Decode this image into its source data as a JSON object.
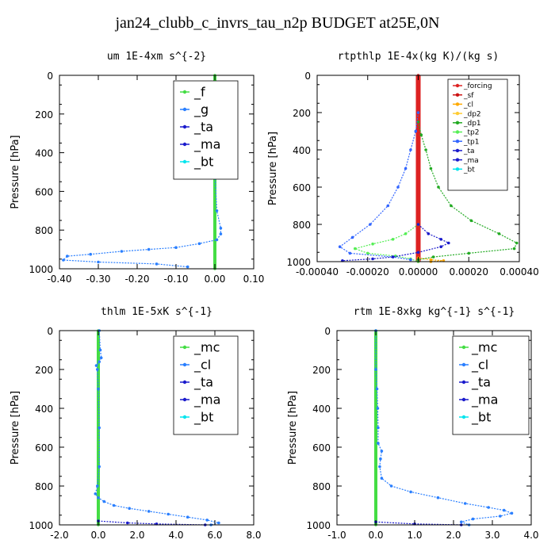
{
  "figure_title": "jan24_clubb_c_invrs_tau_n2p  BUDGET at25E,0N",
  "chart_data": [
    {
      "type": "line",
      "title": "um   1E-4xm s^{-2}",
      "ylabel": "Pressure [hPa]",
      "xlim": [
        -0.4,
        0.1
      ],
      "ylim": [
        1000,
        0
      ],
      "xticks": [
        "-0.40",
        "-0.30",
        "-0.20",
        "-0.10",
        "0.00",
        "0.10"
      ],
      "yticks": [
        "0",
        "200",
        "400",
        "600",
        "800",
        "1000"
      ],
      "legend_font": 16,
      "legend_placement": "top-right",
      "series": [
        {
          "name": "_f",
          "color": "#44dd44",
          "points": [
            [
              0.0,
              0
            ],
            [
              0.0,
              100
            ],
            [
              0.0,
              200
            ],
            [
              0.0,
              300
            ],
            [
              0.0,
              400
            ],
            [
              0.0,
              500
            ],
            [
              0.0,
              600
            ],
            [
              0.0,
              700
            ],
            [
              0.0,
              800
            ],
            [
              0.0,
              900
            ],
            [
              0.0,
              950
            ],
            [
              0.0,
              1000
            ]
          ]
        },
        {
          "name": "_g",
          "color": "#2a7fff",
          "points": [
            [
              0.0,
              100
            ],
            [
              0.02,
              140
            ],
            [
              0.01,
              170
            ],
            [
              0.003,
              250
            ],
            [
              0.0,
              500
            ],
            [
              0.005,
              700
            ],
            [
              0.015,
              790
            ],
            [
              0.015,
              820
            ],
            [
              0.005,
              850
            ],
            [
              -0.04,
              870
            ],
            [
              -0.1,
              890
            ],
            [
              -0.17,
              900
            ],
            [
              -0.24,
              910
            ],
            [
              -0.32,
              925
            ],
            [
              -0.38,
              935
            ],
            [
              -0.39,
              955
            ],
            [
              -0.3,
              965
            ],
            [
              -0.15,
              975
            ],
            [
              -0.07,
              990
            ]
          ]
        },
        {
          "name": "_ta",
          "color": "#1b1bcc",
          "points": []
        },
        {
          "name": "_ma",
          "color": "#1b1bcc",
          "points": []
        },
        {
          "name": "_bt",
          "color": "#00e5ee",
          "points": []
        }
      ]
    },
    {
      "type": "line",
      "title": "rtpthlp   1E-4x(kg K)/(kg s)",
      "ylabel": "Pressure [hPa]",
      "xlim": [
        -0.0004,
        0.0004
      ],
      "ylim": [
        1000,
        0
      ],
      "xticks": [
        "-0.00040",
        "-0.00020",
        "0.00000",
        "0.00020",
        "0.00040"
      ],
      "yticks": [
        "0",
        "200",
        "400",
        "600",
        "800",
        "1000"
      ],
      "legend_font": 9,
      "legend_placement": "top-right",
      "series": [
        {
          "name": "_forcing",
          "color": "#dd2222",
          "points": [
            [
              0.0,
              0
            ],
            [
              0.0,
              200
            ],
            [
              0.0,
              400
            ],
            [
              0.0,
              600
            ],
            [
              0.0,
              800
            ],
            [
              0.0,
              1000
            ]
          ]
        },
        {
          "name": "_sf",
          "color": "#cc1111",
          "points": []
        },
        {
          "name": "_cl",
          "color": "#ffaa00",
          "points": [
            [
              0.0,
              980
            ],
            [
              5e-05,
              990
            ],
            [
              0.0001,
              995
            ],
            [
              5e-05,
              1000
            ]
          ]
        },
        {
          "name": "_dp2",
          "color": "#ffcc33",
          "points": []
        },
        {
          "name": "_dp1",
          "color": "#22aa22",
          "points": [
            [
              0.0,
              250
            ],
            [
              1.2e-05,
              320
            ],
            [
              3e-05,
              400
            ],
            [
              5e-05,
              500
            ],
            [
              8e-05,
              600
            ],
            [
              0.00013,
              700
            ],
            [
              0.00021,
              780
            ],
            [
              0.00032,
              850
            ],
            [
              0.00039,
              900
            ],
            [
              0.00038,
              930
            ],
            [
              0.0002,
              955
            ],
            [
              6e-05,
              975
            ],
            [
              0.0,
              990
            ]
          ]
        },
        {
          "name": "_tp2",
          "color": "#55ee55",
          "points": [
            [
              0.0,
              800
            ],
            [
              -5e-05,
              850
            ],
            [
              -0.0001,
              880
            ],
            [
              -0.00018,
              905
            ],
            [
              -0.00025,
              930
            ],
            [
              -0.0002,
              955
            ],
            [
              -9e-05,
              970
            ],
            [
              -3e-05,
              985
            ],
            [
              0.0,
              1000
            ]
          ]
        },
        {
          "name": "_tp1",
          "color": "#3366ff",
          "points": [
            [
              0.0,
              200
            ],
            [
              -1e-05,
              300
            ],
            [
              -3e-05,
              400
            ],
            [
              -5e-05,
              500
            ],
            [
              -8e-05,
              600
            ],
            [
              -0.00012,
              700
            ],
            [
              -0.00019,
              800
            ],
            [
              -0.00026,
              870
            ],
            [
              -0.00031,
              920
            ],
            [
              -0.00027,
              955
            ],
            [
              -0.0001,
              975
            ],
            [
              -3e-05,
              990
            ]
          ]
        },
        {
          "name": "_ta",
          "color": "#1b1bcc",
          "points": [
            [
              0.0,
              800
            ],
            [
              4e-05,
              850
            ],
            [
              9e-05,
              880
            ],
            [
              0.00012,
              900
            ],
            [
              9e-05,
              920
            ],
            [
              0.0,
              950
            ],
            [
              -0.0001,
              975
            ],
            [
              -0.00018,
              985
            ],
            [
              -0.0003,
              995
            ]
          ]
        },
        {
          "name": "_ma",
          "color": "#1b1bcc",
          "points": []
        },
        {
          "name": "_bt",
          "color": "#00e5ee",
          "points": []
        }
      ]
    },
    {
      "type": "line",
      "title": "thlm   1E-5xK s^{-1}",
      "ylabel": "Pressure [hPa]",
      "xlim": [
        -2.0,
        8.0
      ],
      "ylim": [
        1000,
        0
      ],
      "xticks": [
        "-2.0",
        "0.0",
        "2.0",
        "4.0",
        "6.0",
        "8.0"
      ],
      "yticks": [
        "0",
        "200",
        "400",
        "600",
        "800",
        "1000"
      ],
      "legend_font": 16,
      "legend_placement": "top-right",
      "series": [
        {
          "name": "_mc",
          "color": "#44dd44",
          "points": [
            [
              0.0,
              0
            ],
            [
              0.0,
              200
            ],
            [
              0.0,
              400
            ],
            [
              0.0,
              600
            ],
            [
              0.0,
              800
            ],
            [
              0.0,
              1000
            ]
          ]
        },
        {
          "name": "_cl",
          "color": "#2a7fff",
          "points": [
            [
              0.05,
              0
            ],
            [
              0.1,
              100
            ],
            [
              0.15,
              140
            ],
            [
              0.05,
              160
            ],
            [
              -0.1,
              180
            ],
            [
              -0.05,
              200
            ],
            [
              0.0,
              300
            ],
            [
              0.05,
              500
            ],
            [
              0.05,
              700
            ],
            [
              -0.05,
              800
            ],
            [
              -0.15,
              840
            ],
            [
              0.0,
              860
            ],
            [
              0.3,
              880
            ],
            [
              0.8,
              900
            ],
            [
              1.6,
              915
            ],
            [
              2.6,
              930
            ],
            [
              3.6,
              945
            ],
            [
              4.6,
              960
            ],
            [
              5.6,
              975
            ],
            [
              6.2,
              990
            ],
            [
              5.8,
              1000
            ]
          ]
        },
        {
          "name": "_ta",
          "color": "#1b1bcc",
          "points": [
            [
              0.0,
              980
            ],
            [
              1.5,
              990
            ],
            [
              3.0,
              995
            ],
            [
              5.5,
              1000
            ]
          ]
        },
        {
          "name": "_ma",
          "color": "#1b1bcc",
          "points": []
        },
        {
          "name": "_bt",
          "color": "#00e5ee",
          "points": []
        }
      ]
    },
    {
      "type": "line",
      "title": "rtm   1E-8xkg kg^{-1} s^{-1}",
      "ylabel": "Pressure [hPa]",
      "xlim": [
        -1.0,
        4.0
      ],
      "ylim": [
        1000,
        0
      ],
      "xticks": [
        "-1.0",
        "0.0",
        "1.0",
        "2.0",
        "3.0",
        "4.0"
      ],
      "yticks": [
        "0",
        "200",
        "400",
        "600",
        "800",
        "1000"
      ],
      "legend_font": 16,
      "legend_placement": "top-right",
      "series": [
        {
          "name": "_mc",
          "color": "#44dd44",
          "points": [
            [
              0.0,
              0
            ],
            [
              0.0,
              200
            ],
            [
              0.0,
              400
            ],
            [
              0.0,
              600
            ],
            [
              0.0,
              800
            ],
            [
              0.0,
              1000
            ]
          ]
        },
        {
          "name": "_cl",
          "color": "#2a7fff",
          "points": [
            [
              0.0,
              0
            ],
            [
              0.0,
              200
            ],
            [
              0.03,
              300
            ],
            [
              0.05,
              400
            ],
            [
              0.06,
              500
            ],
            [
              0.06,
              580
            ],
            [
              0.15,
              620
            ],
            [
              0.12,
              660
            ],
            [
              0.1,
              700
            ],
            [
              0.15,
              760
            ],
            [
              0.4,
              800
            ],
            [
              0.9,
              830
            ],
            [
              1.6,
              860
            ],
            [
              2.3,
              890
            ],
            [
              2.9,
              910
            ],
            [
              3.3,
              925
            ],
            [
              3.5,
              940
            ],
            [
              3.2,
              955
            ],
            [
              2.5,
              970
            ],
            [
              2.2,
              985
            ],
            [
              2.4,
              1000
            ]
          ]
        },
        {
          "name": "_ta",
          "color": "#1b1bcc",
          "points": [
            [
              0.0,
              985
            ],
            [
              1.0,
              995
            ],
            [
              2.2,
              1000
            ]
          ]
        },
        {
          "name": "_ma",
          "color": "#1b1bcc",
          "points": []
        },
        {
          "name": "_bt",
          "color": "#00e5ee",
          "points": []
        }
      ]
    }
  ]
}
